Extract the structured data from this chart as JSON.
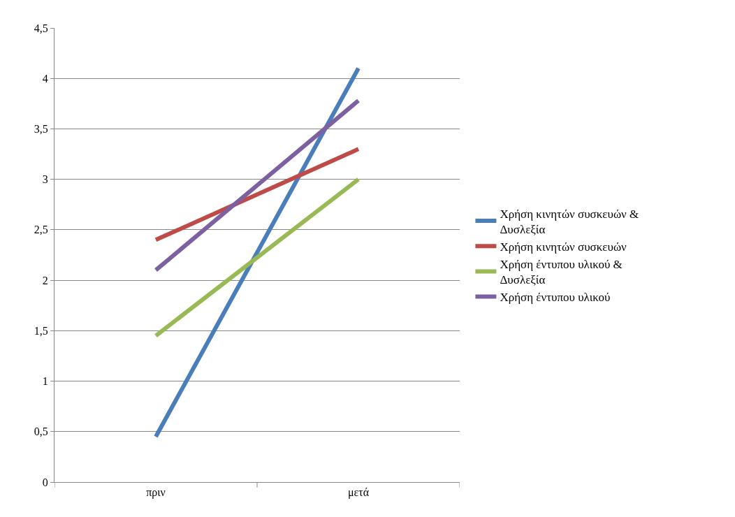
{
  "chart_data": {
    "type": "line",
    "categories": [
      "πριν",
      "μετά"
    ],
    "series": [
      {
        "name": "Χρήση κινητών συσκευών & Δυσλεξία",
        "color": "#4a7ebb",
        "values": [
          0.45,
          4.1
        ]
      },
      {
        "name": "Χρήση κινητών συσκευών",
        "color": "#be4b48",
        "values": [
          2.4,
          3.3
        ]
      },
      {
        "name": "Χρήση έντυπου υλικού & Δυσλεξία",
        "color": "#98b954",
        "values": [
          1.45,
          3.0
        ]
      },
      {
        "name": "Χρήση έντυπου υλικού",
        "color": "#7d60a0",
        "values": [
          2.1,
          3.78
        ]
      }
    ],
    "ylim": [
      0,
      4.5
    ],
    "yticks": [
      0,
      {
        "value": 0.5,
        "label": "0,5"
      },
      1,
      {
        "value": 1.5,
        "label": "1,5"
      },
      2,
      {
        "value": 2.5,
        "label": "2,5"
      },
      3,
      {
        "value": 3.5,
        "label": "3,5"
      },
      4,
      {
        "value": 4.5,
        "label": "4,5"
      }
    ],
    "grid": "y",
    "legend": "right",
    "marker": "none",
    "line_style": "solid"
  }
}
